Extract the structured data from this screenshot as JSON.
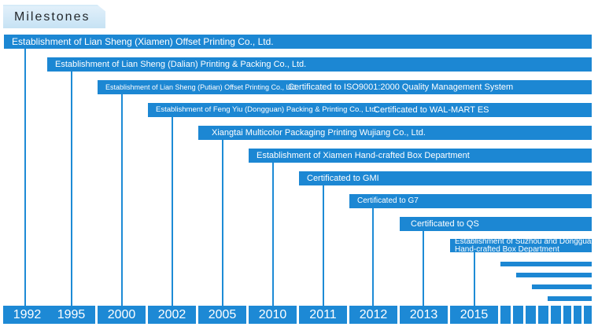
{
  "title": "Milestones",
  "years": [
    "1992",
    "1995",
    "2000",
    "2002",
    "2005",
    "2010",
    "2011",
    "2012",
    "2013",
    "2015"
  ],
  "milestones": [
    {
      "year": "1992",
      "text": "Establishment of Lian Sheng (Xiamen) Offset Printing Co., Ltd."
    },
    {
      "year": "1995",
      "text": "Establishment of Lian Sheng (Dalian) Printing & Packing Co., Ltd."
    },
    {
      "year": "2000",
      "text": "Establishment of Lian Sheng (Putian) Offset Printing Co., Ltd.",
      "text2": "Certificated to ISO9001:2000 Quality Management System"
    },
    {
      "year": "2002",
      "text": "Establishment of Feng Yiu (Dongguan) Packing & Printing Co., Ltd.",
      "text2": "Certificated to WAL-MART ES"
    },
    {
      "year": "2005",
      "text": "Xiangtai Multicolor Packaging Printing Wujiang Co., Ltd."
    },
    {
      "year": "2010",
      "text": "Establishment of Xiamen Hand-crafted Box Department"
    },
    {
      "year": "2011",
      "text": "Certificated to GMI"
    },
    {
      "year": "2012",
      "text": "Certificated to G7"
    },
    {
      "year": "2013",
      "text": "Certificated to QS"
    },
    {
      "year": "2015",
      "text": "Establishment of Suzhou and Dongguan Hand-crafted Box Department"
    }
  ],
  "colors": {
    "bar": "#1c87d3",
    "title_bg": "#cfe6f6",
    "text_on_bar": "#ffffff"
  }
}
